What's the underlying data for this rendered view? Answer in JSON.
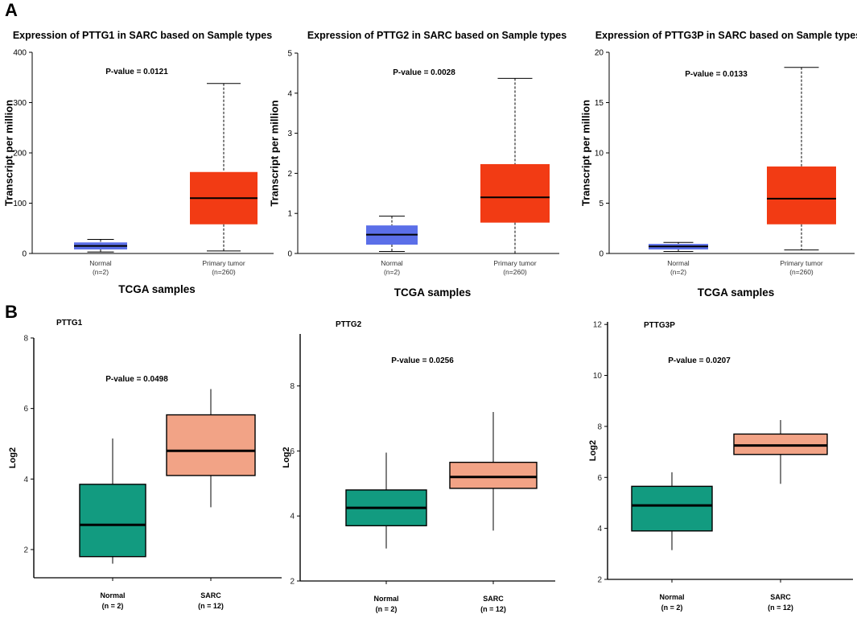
{
  "panels": [
    {
      "letter": "A"
    },
    {
      "letter": "B"
    }
  ],
  "colors": {
    "a_normal": "#5b6fe8",
    "a_tumor": "#f23b14",
    "b_normal": "#129b80",
    "b_sarc": "#f2a386"
  },
  "chart_data": [
    {
      "type": "box",
      "title": "Expression of PTTG1 in SARC based on Sample types",
      "ylabel": "Transcript per million",
      "xlabel": "TCGA samples",
      "pvalue": "P-value = 0.0121",
      "ylim": [
        0,
        400
      ],
      "yticks": [
        {
          "v": 0,
          "t": "0"
        },
        {
          "v": 100,
          "t": "100"
        },
        {
          "v": 200,
          "t": "200"
        },
        {
          "v": 300,
          "t": "300"
        },
        {
          "v": 400,
          "t": "400"
        }
      ],
      "boxes": [
        {
          "name": "Normal",
          "n": "(n=2)",
          "min": 3,
          "q1": 8,
          "median": 15,
          "q3": 22,
          "max": 28
        },
        {
          "name": "Primary tumor",
          "n": "(n=260)",
          "min": 5,
          "q1": 58,
          "median": 110,
          "q3": 162,
          "max": 338
        }
      ]
    },
    {
      "type": "box",
      "title": "Expression of PTTG2 in SARC based on Sample types",
      "ylabel": "Transcript per million",
      "xlabel": "TCGA samples",
      "pvalue": "P-value = 0.0028",
      "ylim": [
        0,
        5
      ],
      "yticks": [
        {
          "v": 0,
          "t": "0"
        },
        {
          "v": 1,
          "t": "1"
        },
        {
          "v": 2,
          "t": "2"
        },
        {
          "v": 3,
          "t": "3"
        },
        {
          "v": 4,
          "t": "4"
        },
        {
          "v": 5,
          "t": "5"
        }
      ],
      "boxes": [
        {
          "name": "Normal",
          "n": "(n=2)",
          "min": 0.05,
          "q1": 0.22,
          "median": 0.47,
          "q3": 0.7,
          "max": 0.93
        },
        {
          "name": "Primary tumor",
          "n": "(n=260)",
          "min": 0.0,
          "q1": 0.77,
          "median": 1.4,
          "q3": 2.23,
          "max": 4.37
        }
      ]
    },
    {
      "type": "box",
      "title": "Expression of PTTG3P in SARC based on Sample types",
      "ylabel": "Transcript per million",
      "xlabel": "TCGA samples",
      "pvalue": "P-value = 0.0133",
      "ylim": [
        0,
        20
      ],
      "yticks": [
        {
          "v": 0,
          "t": "0"
        },
        {
          "v": 5,
          "t": "5"
        },
        {
          "v": 10,
          "t": "10"
        },
        {
          "v": 15,
          "t": "15"
        },
        {
          "v": 20,
          "t": "20"
        }
      ],
      "boxes": [
        {
          "name": "Normal",
          "n": "(n=2)",
          "min": 0.2,
          "q1": 0.4,
          "median": 0.7,
          "q3": 0.95,
          "max": 1.1
        },
        {
          "name": "Primary tumor",
          "n": "(n=260)",
          "min": 0.35,
          "q1": 2.9,
          "median": 5.45,
          "q3": 8.65,
          "max": 18.5
        }
      ]
    },
    {
      "type": "box",
      "title": "PTTG1",
      "ylabel": "Log2",
      "xlabel": "",
      "pvalue": "P-value = 0.0498",
      "ylim": [
        1.2,
        8
      ],
      "yticks": [
        {
          "v": 2,
          "t": "2"
        },
        {
          "v": 4,
          "t": "4"
        },
        {
          "v": 6,
          "t": "6"
        },
        {
          "v": 8,
          "t": "8"
        }
      ],
      "boxes": [
        {
          "name": "Normal",
          "n": "(n = 2)",
          "min": 1.6,
          "q1": 1.8,
          "median": 2.7,
          "q3": 3.85,
          "max": 5.15
        },
        {
          "name": "SARC",
          "n": "(n = 12)",
          "min": 3.2,
          "q1": 4.1,
          "median": 4.8,
          "q3": 5.82,
          "max": 6.55
        }
      ]
    },
    {
      "type": "box",
      "title": "PTTG2",
      "ylabel": "Log2",
      "xlabel": "",
      "pvalue": "P-value = 0.0256",
      "ylim": [
        2,
        9.6
      ],
      "yticks": [
        {
          "v": 2,
          "t": "2"
        },
        {
          "v": 4,
          "t": "4"
        },
        {
          "v": 6,
          "t": "6"
        },
        {
          "v": 8,
          "t": "8"
        }
      ],
      "boxes": [
        {
          "name": "Normal",
          "n": "(n = 2)",
          "min": 3.0,
          "q1": 3.7,
          "median": 4.25,
          "q3": 4.8,
          "max": 5.95
        },
        {
          "name": "SARC",
          "n": "(n = 12)",
          "min": 3.55,
          "q1": 4.85,
          "median": 5.2,
          "q3": 5.65,
          "max": 7.2
        }
      ]
    },
    {
      "type": "box",
      "title": "PTTG3P",
      "ylabel": "Log2",
      "xlabel": "",
      "pvalue": "P-value = 0.0207",
      "ylim": [
        2,
        12.1
      ],
      "yticks": [
        {
          "v": 2,
          "t": "2"
        },
        {
          "v": 4,
          "t": "4"
        },
        {
          "v": 6,
          "t": "6"
        },
        {
          "v": 8,
          "t": "8"
        },
        {
          "v": 10,
          "t": "10"
        },
        {
          "v": 12,
          "t": "12"
        }
      ],
      "boxes": [
        {
          "name": "Normal",
          "n": "(n = 2)",
          "min": 3.15,
          "q1": 3.9,
          "median": 4.9,
          "q3": 5.65,
          "max": 6.2
        },
        {
          "name": "SARC",
          "n": "(n = 12)",
          "min": 5.75,
          "q1": 6.9,
          "median": 7.25,
          "q3": 7.7,
          "max": 8.25
        }
      ]
    }
  ]
}
